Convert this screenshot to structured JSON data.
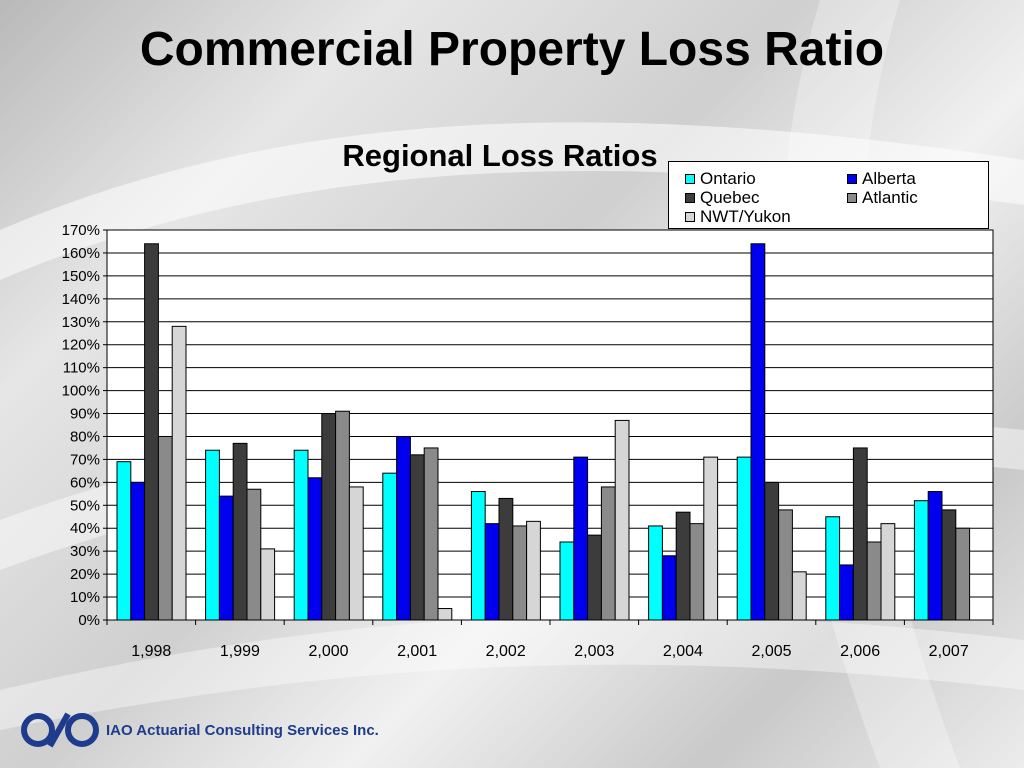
{
  "slide": {
    "title": "Commercial Property Loss Ratio",
    "company": "IAO Actuarial Consulting Services Inc."
  },
  "colors": {
    "brand": "#1f3b8c",
    "plot_background": "#ffffff",
    "gridline": "#000000"
  },
  "chart_data": {
    "type": "bar",
    "title": "Regional Loss Ratios",
    "xlabel": "",
    "ylabel": "",
    "categories": [
      "1,998",
      "1,999",
      "2,000",
      "2,001",
      "2,002",
      "2,003",
      "2,004",
      "2,005",
      "2,006",
      "2,007"
    ],
    "y_ticks": [
      "0%",
      "10%",
      "20%",
      "30%",
      "40%",
      "50%",
      "60%",
      "70%",
      "80%",
      "90%",
      "100%",
      "110%",
      "120%",
      "130%",
      "140%",
      "150%",
      "160%",
      "170%"
    ],
    "ylim": [
      0,
      170
    ],
    "y_unit": "%",
    "grid": true,
    "legend_position": "top-right",
    "series": [
      {
        "name": "Ontario",
        "color": "#00ffff",
        "values": [
          69,
          74,
          74,
          64,
          56,
          34,
          41,
          71,
          45,
          52
        ]
      },
      {
        "name": "Alberta",
        "color": "#0000ee",
        "values": [
          60,
          54,
          62,
          80,
          42,
          71,
          28,
          164,
          24,
          56
        ]
      },
      {
        "name": "Quebec",
        "color": "#3c3c3c",
        "values": [
          164,
          77,
          90,
          72,
          53,
          37,
          47,
          60,
          75,
          48
        ]
      },
      {
        "name": "Atlantic",
        "color": "#8a8a8a",
        "values": [
          80,
          57,
          91,
          75,
          41,
          58,
          42,
          48,
          34,
          40
        ]
      },
      {
        "name": "NWT/Yukon",
        "color": "#d6d6d6",
        "values": [
          128,
          31,
          58,
          5,
          43,
          87,
          71,
          21,
          42,
          0
        ]
      }
    ]
  }
}
